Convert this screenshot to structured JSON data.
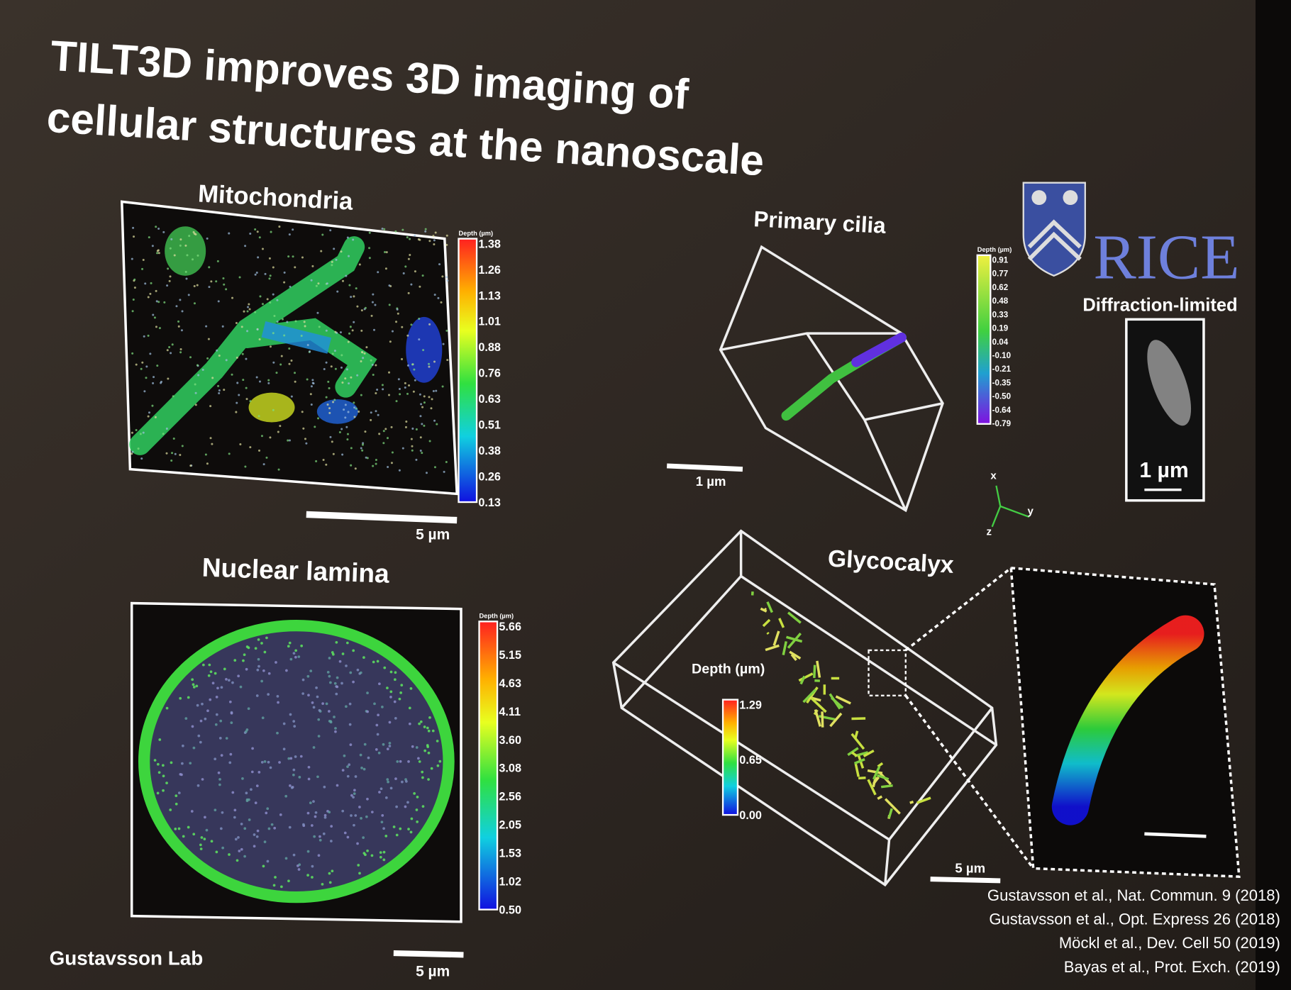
{
  "title": {
    "lines": [
      "TILT3D improves 3D imaging of",
      "cellular structures at the nanoscale"
    ]
  },
  "panels": {
    "mitochondria": {
      "label": "Mitochondria",
      "colorbar_title": "Depth (µm)",
      "colorbar_ticks": [
        "1.38",
        "1.26",
        "1.13",
        "1.01",
        "0.88",
        "0.76",
        "0.63",
        "0.51",
        "0.38",
        "0.26",
        "0.13"
      ],
      "scale_bar": "5 µm"
    },
    "primary_cilia": {
      "label": "Primary cilia",
      "colorbar_title": "Depth (µm)",
      "colorbar_ticks": [
        "0.91",
        "0.77",
        "0.62",
        "0.48",
        "0.33",
        "0.19",
        "0.04",
        "-0.10",
        "-0.21",
        "-0.35",
        "-0.50",
        "-0.64",
        "-0.79"
      ],
      "scale_bar": "1 µm",
      "axes": [
        "x",
        "y",
        "z"
      ]
    },
    "diffraction_limited": {
      "label": "Diffraction-limited",
      "scale_bar": "1 µm"
    },
    "nuclear_lamina": {
      "label": "Nuclear lamina",
      "colorbar_title": "Depth (µm)",
      "colorbar_ticks": [
        "5.66",
        "5.15",
        "4.63",
        "4.11",
        "3.60",
        "3.08",
        "2.56",
        "2.05",
        "1.53",
        "1.02",
        "0.50"
      ],
      "scale_bar": "5 µm"
    },
    "glycocalyx": {
      "label": "Glycocalyx",
      "colorbar_title": "Depth (µm)",
      "colorbar_ticks": [
        "1.29",
        "0.65",
        "0.00"
      ],
      "scale_bar": "5 µm"
    }
  },
  "logo": {
    "text": "RICE"
  },
  "footer": {
    "lab": "Gustavsson Lab"
  },
  "references": [
    "Gustavsson et al., Nat. Commun. 9 (2018)",
    "Gustavsson et al., Opt. Express 26 (2018)",
    "Möckl et al., Dev. Cell 50 (2019)",
    "Bayas et al., Prot. Exch. (2019)"
  ]
}
